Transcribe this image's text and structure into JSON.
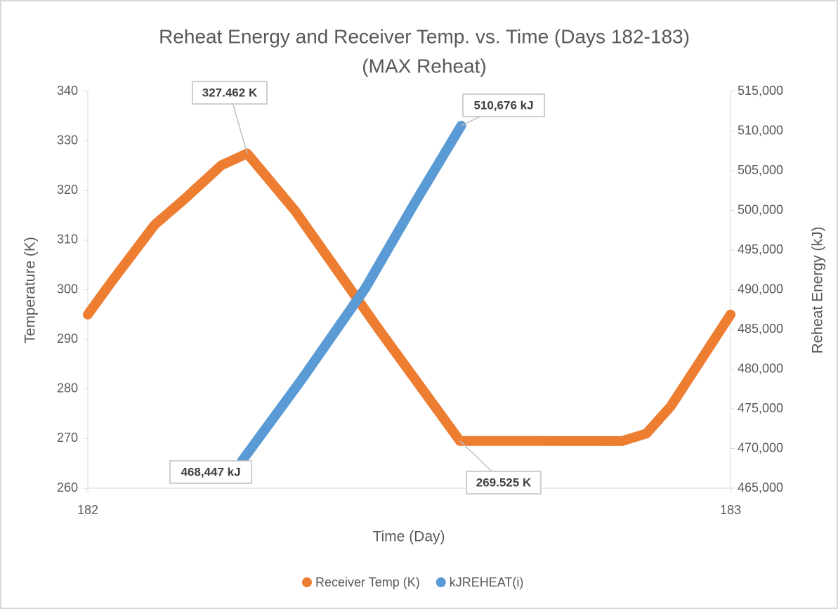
{
  "chart_data": {
    "type": "line",
    "title": "Reheat  Energy and Receiver Temp. vs. Time (Days 182-183)",
    "subtitle": "(MAX Reheat)",
    "x_label": "Time (Day)",
    "y_label": "Temperature (K)",
    "y2_label": "Reheat Energy (kJ)",
    "xlim": [
      182,
      183
    ],
    "xticks": [
      182,
      183
    ],
    "ylim": [
      260,
      340
    ],
    "yticks": [
      260,
      270,
      280,
      290,
      300,
      310,
      320,
      330,
      340
    ],
    "y2lim": [
      465000,
      515000
    ],
    "y2ticks": [
      {
        "value": 465000,
        "label": "465,000"
      },
      {
        "value": 470000,
        "label": "470,000"
      },
      {
        "value": 475000,
        "label": "475,000"
      },
      {
        "value": 480000,
        "label": "480,000"
      },
      {
        "value": 485000,
        "label": "485,000"
      },
      {
        "value": 490000,
        "label": "490,000"
      },
      {
        "value": 495000,
        "label": "495,000"
      },
      {
        "value": 500000,
        "label": "500,000"
      },
      {
        "value": 505000,
        "label": "505,000"
      },
      {
        "value": 510000,
        "label": "510,000"
      },
      {
        "value": 515000,
        "label": "515,000"
      }
    ],
    "legend": "bottom",
    "series": [
      {
        "name": "Receiver Temp (K)",
        "color": "#ed7d31",
        "x": [
          182.0,
          182.038,
          182.104,
          182.148,
          182.208,
          182.248,
          182.322,
          182.454,
          182.579,
          182.831,
          182.869,
          182.907,
          183.0
        ],
        "values": [
          295.0,
          301.8,
          313.1,
          318.0,
          325.1,
          327.462,
          316.0,
          291.8,
          269.525,
          269.5,
          271.0,
          276.5,
          295.0
        ],
        "value_labels": [
          null,
          null,
          null,
          null,
          null,
          "327.462 K",
          null,
          null,
          "269.525 K",
          null,
          null,
          null,
          null
        ]
      },
      {
        "name": "kJREHEAT(i)",
        "color": "#5b9bd5",
        "axis": "y2",
        "x": [
          182.24,
          182.333,
          182.432,
          182.508,
          182.581
        ],
        "values": [
          468447,
          478717,
          490221,
          500841,
          510676
        ],
        "value_labels": [
          "468,447 kJ",
          null,
          null,
          null,
          "510,676 kJ"
        ]
      }
    ]
  }
}
